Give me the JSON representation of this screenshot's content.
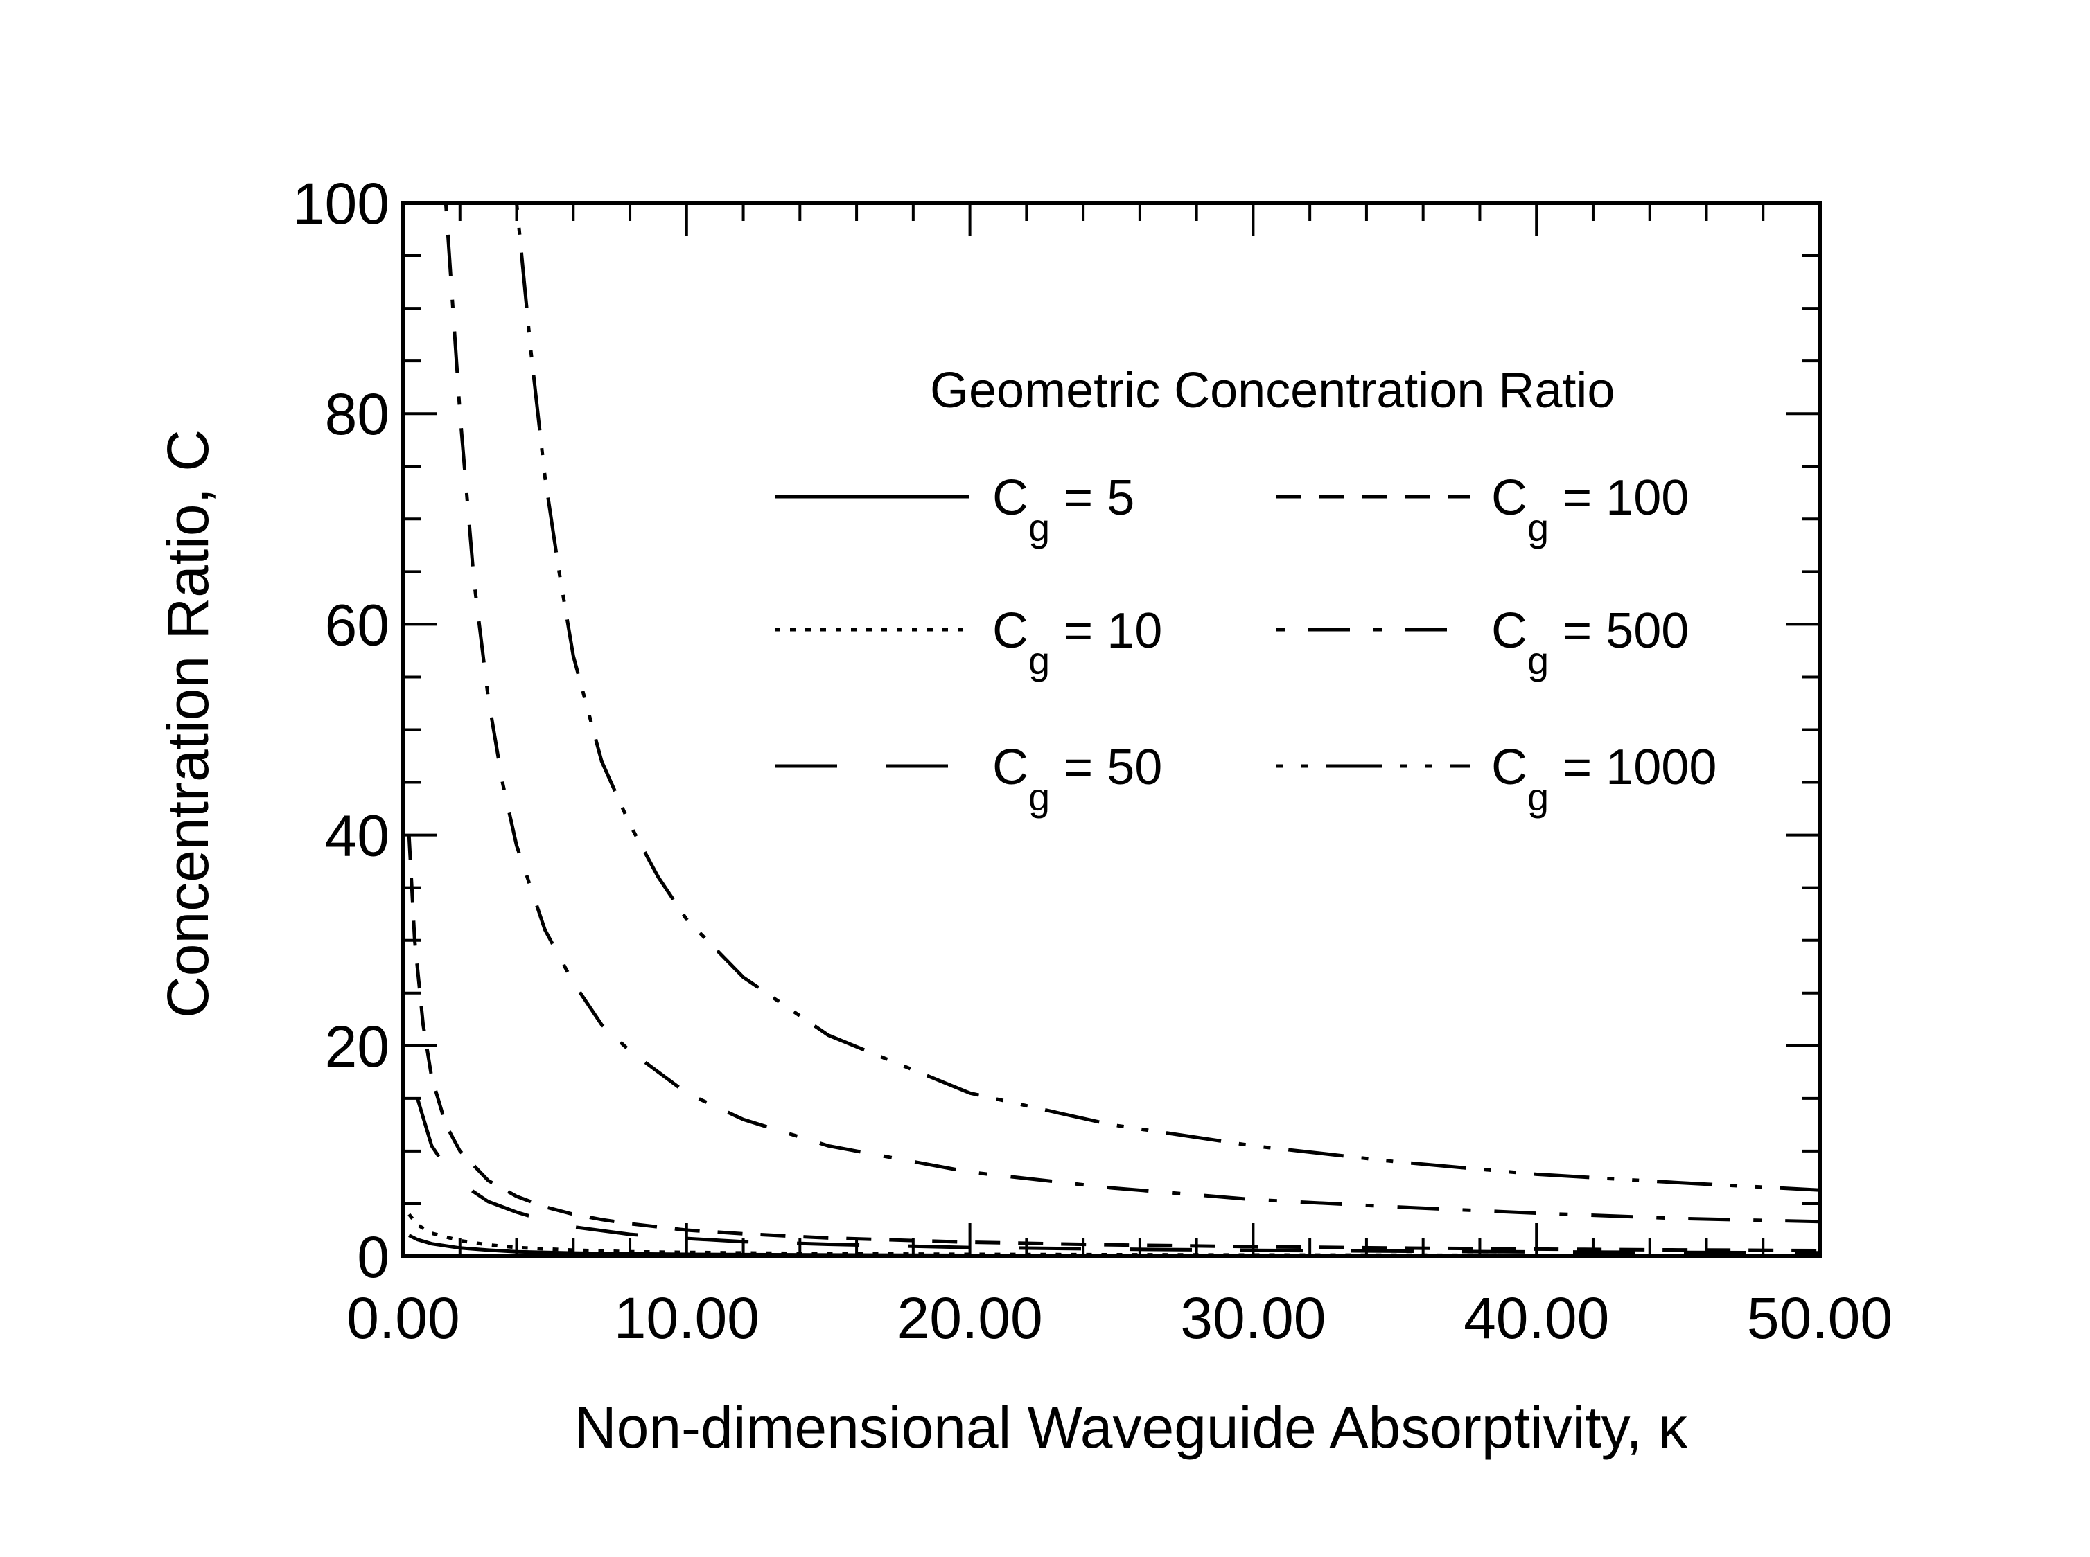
{
  "chart_data": {
    "type": "line",
    "title": "",
    "xlabel": "Non-dimensional Waveguide Absorptivity, κ",
    "ylabel": "Concentration Ratio, C",
    "xlim": [
      0,
      50
    ],
    "ylim": [
      0,
      100
    ],
    "x_ticks": [
      "0.00",
      "10.00",
      "20.00",
      "30.00",
      "40.00",
      "50.00"
    ],
    "y_ticks": [
      "0",
      "20",
      "40",
      "60",
      "80",
      "100"
    ],
    "grid": false,
    "legend": {
      "title": "Geometric Concentration Ratio",
      "placement": "upper-right",
      "columns": 2
    },
    "series": [
      {
        "name": "Cg = 5",
        "label_main": "C",
        "label_sub": "g",
        "label_rest": " = 5",
        "style": "solid",
        "x": [
          0.2,
          0.5,
          1,
          2,
          3,
          4,
          6,
          8,
          10,
          15,
          20,
          30,
          40,
          50
        ],
        "y": [
          2.0,
          1.6,
          1.2,
          0.8,
          0.6,
          0.45,
          0.32,
          0.25,
          0.2,
          0.14,
          0.1,
          0.07,
          0.05,
          0.04
        ]
      },
      {
        "name": "Cg = 10",
        "label_main": "C",
        "label_sub": "g",
        "label_rest": " = 10",
        "style": "dotted",
        "x": [
          0.2,
          0.5,
          1,
          2,
          3,
          4,
          6,
          8,
          10,
          15,
          20,
          30,
          40,
          50
        ],
        "y": [
          4.0,
          3.0,
          2.2,
          1.5,
          1.1,
          0.85,
          0.6,
          0.45,
          0.38,
          0.26,
          0.2,
          0.13,
          0.1,
          0.08
        ]
      },
      {
        "name": "Cg = 50",
        "label_main": "C",
        "label_sub": "g",
        "label_rest": " = 50",
        "style": "longdash",
        "x": [
          0.5,
          1,
          1.5,
          2,
          3,
          4,
          5,
          6,
          8,
          10,
          12,
          15,
          20,
          25,
          30,
          35,
          40,
          45,
          50
        ],
        "y": [
          15,
          10.5,
          8.5,
          7,
          5.2,
          4.2,
          3.4,
          2.8,
          2.1,
          1.7,
          1.4,
          1.15,
          0.85,
          0.7,
          0.58,
          0.5,
          0.43,
          0.38,
          0.34
        ]
      },
      {
        "name": "Cg = 100",
        "label_main": "C",
        "label_sub": "g",
        "label_rest": " = 100",
        "style": "dashed",
        "x": [
          0.2,
          0.4,
          0.7,
          1,
          1.5,
          2,
          3,
          4,
          5,
          6,
          7,
          8,
          10,
          12,
          15,
          20,
          25,
          30,
          35,
          40,
          45,
          50
        ],
        "y": [
          40,
          30,
          22,
          17,
          12.5,
          10,
          7.2,
          5.7,
          4.7,
          4.0,
          3.5,
          3.1,
          2.5,
          2.15,
          1.75,
          1.35,
          1.1,
          0.93,
          0.8,
          0.7,
          0.62,
          0.56
        ]
      },
      {
        "name": "Cg = 500",
        "label_main": "C",
        "label_sub": "g",
        "label_rest": " = 500",
        "style": "dashdot",
        "x": [
          1.5,
          2,
          2.5,
          3,
          3.5,
          4,
          5,
          6,
          7,
          8,
          10,
          12,
          15,
          20,
          25,
          30,
          35,
          40,
          45,
          50
        ],
        "y": [
          100,
          80,
          64,
          53,
          45,
          39,
          31,
          26,
          22,
          19.5,
          15.5,
          13,
          10.5,
          8,
          6.5,
          5.4,
          4.7,
          4.1,
          3.6,
          3.3
        ]
      },
      {
        "name": "Cg = 1000",
        "label_main": "C",
        "label_sub": "g",
        "label_rest": " = 1000",
        "style": "dashdotdot",
        "x": [
          4,
          4.5,
          5,
          5.5,
          6,
          7,
          8,
          9,
          10,
          12,
          15,
          20,
          25,
          30,
          35,
          40,
          45,
          50
        ],
        "y": [
          100,
          86,
          74,
          65,
          57,
          47,
          41,
          36,
          32,
          26.5,
          21,
          15.5,
          12.5,
          10.5,
          9.0,
          7.8,
          7.0,
          6.3
        ]
      }
    ]
  }
}
